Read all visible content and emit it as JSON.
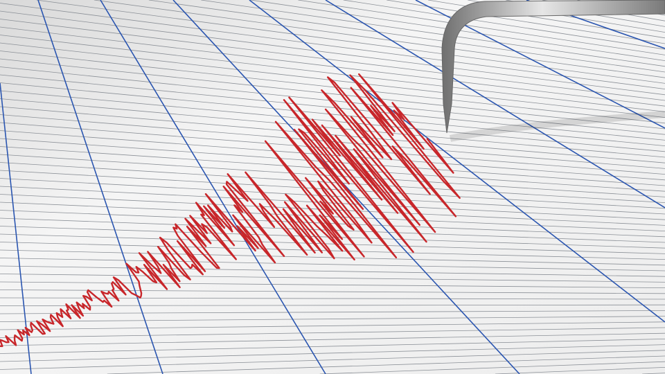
{
  "scene": {
    "subject": "seismograph",
    "colors": {
      "paper": "#f3f3f3",
      "grid_line": "#8a8f96",
      "major_line": "#2a55b0",
      "trace": "#c8262a",
      "needle": "#9a9a9a"
    }
  }
}
